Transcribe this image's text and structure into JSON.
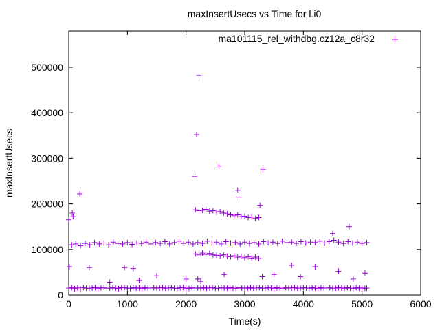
{
  "chart_data": {
    "type": "scatter",
    "title": "maxInsertUsecs vs Time for l.i0",
    "xlabel": "Time(s)",
    "ylabel": "maxInsertUsecs",
    "xlim": [
      0,
      6000
    ],
    "ylim": [
      0,
      580000
    ],
    "xticks": [
      0,
      1000,
      2000,
      3000,
      4000,
      5000,
      6000
    ],
    "yticks": [
      0,
      100000,
      200000,
      300000,
      400000,
      500000
    ],
    "grid": false,
    "legend_position": "top-right",
    "series": [
      {
        "name": "ma101115_rel_withdbg.cz12a_c8r32",
        "color": "#9400d3",
        "points": [
          [
            0,
            15000
          ],
          [
            50,
            16000
          ],
          [
            100,
            14000
          ],
          [
            150,
            15500
          ],
          [
            200,
            13000
          ],
          [
            250,
            16000
          ],
          [
            300,
            15000
          ],
          [
            350,
            14500
          ],
          [
            400,
            15200
          ],
          [
            450,
            16000
          ],
          [
            500,
            14000
          ],
          [
            550,
            15500
          ],
          [
            600,
            16500
          ],
          [
            650,
            14800
          ],
          [
            700,
            15000
          ],
          [
            750,
            16200
          ],
          [
            800,
            15000
          ],
          [
            850,
            14000
          ],
          [
            900,
            15800
          ],
          [
            950,
            16000
          ],
          [
            1000,
            15000
          ],
          [
            1050,
            14500
          ],
          [
            1100,
            16000
          ],
          [
            1150,
            15000
          ],
          [
            1200,
            15500
          ],
          [
            1250,
            14200
          ],
          [
            1300,
            16000
          ],
          [
            1350,
            15000
          ],
          [
            1400,
            15300
          ],
          [
            1450,
            16100
          ],
          [
            1500,
            14900
          ],
          [
            1550,
            15500
          ],
          [
            1600,
            16000
          ],
          [
            1650,
            14700
          ],
          [
            1700,
            15200
          ],
          [
            1750,
            16000
          ],
          [
            1800,
            15000
          ],
          [
            1850,
            14600
          ],
          [
            1900,
            15700
          ],
          [
            1950,
            16000
          ],
          [
            2000,
            15000
          ],
          [
            2050,
            14500
          ],
          [
            2100,
            16200
          ],
          [
            2150,
            15000
          ],
          [
            2200,
            15500
          ],
          [
            2250,
            14800
          ],
          [
            2300,
            16000
          ],
          [
            2350,
            15000
          ],
          [
            2400,
            15400
          ],
          [
            2450,
            16000
          ],
          [
            2500,
            14600
          ],
          [
            2550,
            15000
          ],
          [
            2600,
            16000
          ],
          [
            2650,
            15200
          ],
          [
            2700,
            14800
          ],
          [
            2750,
            15900
          ],
          [
            2800,
            15000
          ],
          [
            2850,
            14500
          ],
          [
            2900,
            16000
          ],
          [
            2950,
            15000
          ],
          [
            3000,
            15500
          ],
          [
            3050,
            14700
          ],
          [
            3100,
            16000
          ],
          [
            3150,
            15000
          ],
          [
            3200,
            15300
          ],
          [
            3250,
            16000
          ],
          [
            3300,
            14800
          ],
          [
            3350,
            15000
          ],
          [
            3400,
            16000
          ],
          [
            3450,
            15200
          ],
          [
            3500,
            14600
          ],
          [
            3550,
            15800
          ],
          [
            3600,
            15000
          ],
          [
            3650,
            14500
          ],
          [
            3700,
            16000
          ],
          [
            3750,
            15000
          ],
          [
            3800,
            15400
          ],
          [
            3850,
            16000
          ],
          [
            3900,
            14800
          ],
          [
            3950,
            15000
          ],
          [
            4000,
            16000
          ],
          [
            4050,
            15100
          ],
          [
            4100,
            14700
          ],
          [
            4150,
            15900
          ],
          [
            4200,
            15000
          ],
          [
            4250,
            14500
          ],
          [
            4300,
            16000
          ],
          [
            4350,
            15000
          ],
          [
            4400,
            15300
          ],
          [
            4450,
            16000
          ],
          [
            4500,
            14800
          ],
          [
            4550,
            15000
          ],
          [
            4600,
            16000
          ],
          [
            4650,
            15200
          ],
          [
            4700,
            14600
          ],
          [
            4750,
            15800
          ],
          [
            4800,
            15000
          ],
          [
            4850,
            14500
          ],
          [
            4900,
            16000
          ],
          [
            4950,
            15000
          ],
          [
            5000,
            15500
          ],
          [
            5050,
            14800
          ],
          [
            5080,
            15000
          ],
          [
            50,
            110000
          ],
          [
            120,
            112000
          ],
          [
            200,
            108000
          ],
          [
            280,
            113000
          ],
          [
            360,
            110000
          ],
          [
            440,
            115000
          ],
          [
            520,
            112000
          ],
          [
            600,
            114000
          ],
          [
            680,
            110000
          ],
          [
            760,
            116000
          ],
          [
            840,
            113000
          ],
          [
            920,
            112000
          ],
          [
            1000,
            115000
          ],
          [
            1080,
            111000
          ],
          [
            1160,
            114000
          ],
          [
            1240,
            113000
          ],
          [
            1320,
            116000
          ],
          [
            1400,
            112000
          ],
          [
            1480,
            115000
          ],
          [
            1560,
            113000
          ],
          [
            1640,
            117000
          ],
          [
            1720,
            112000
          ],
          [
            1800,
            115000
          ],
          [
            1880,
            118000
          ],
          [
            1960,
            113000
          ],
          [
            2040,
            116000
          ],
          [
            2120,
            112000
          ],
          [
            2200,
            115000
          ],
          [
            2280,
            113000
          ],
          [
            2360,
            118000
          ],
          [
            2440,
            114000
          ],
          [
            2520,
            116000
          ],
          [
            2600,
            112000
          ],
          [
            2680,
            117000
          ],
          [
            2760,
            114000
          ],
          [
            2840,
            115000
          ],
          [
            2920,
            112000
          ],
          [
            3000,
            116000
          ],
          [
            3080,
            113000
          ],
          [
            3160,
            115000
          ],
          [
            3240,
            112000
          ],
          [
            3320,
            117000
          ],
          [
            3400,
            114000
          ],
          [
            3480,
            116000
          ],
          [
            3560,
            113000
          ],
          [
            3640,
            118000
          ],
          [
            3720,
            115000
          ],
          [
            3800,
            116000
          ],
          [
            3880,
            113000
          ],
          [
            3960,
            117000
          ],
          [
            4040,
            114000
          ],
          [
            4120,
            116000
          ],
          [
            4200,
            115000
          ],
          [
            4280,
            118000
          ],
          [
            4360,
            114000
          ],
          [
            4440,
            117000
          ],
          [
            4520,
            120000
          ],
          [
            4600,
            116000
          ],
          [
            4680,
            113000
          ],
          [
            4760,
            117000
          ],
          [
            4840,
            114000
          ],
          [
            4920,
            116000
          ],
          [
            5000,
            113000
          ],
          [
            5080,
            115000
          ],
          [
            2160,
            187000
          ],
          [
            2220,
            185000
          ],
          [
            2280,
            186000
          ],
          [
            2340,
            188000
          ],
          [
            2400,
            184000
          ],
          [
            2460,
            185000
          ],
          [
            2520,
            182000
          ],
          [
            2580,
            183000
          ],
          [
            2640,
            180000
          ],
          [
            2700,
            178000
          ],
          [
            2760,
            176000
          ],
          [
            2820,
            174000
          ],
          [
            2880,
            176000
          ],
          [
            2940,
            172000
          ],
          [
            3000,
            173000
          ],
          [
            3060,
            170000
          ],
          [
            3120,
            171000
          ],
          [
            3180,
            168000
          ],
          [
            3240,
            170000
          ],
          [
            2160,
            90000
          ],
          [
            2220,
            88000
          ],
          [
            2280,
            92000
          ],
          [
            2340,
            89000
          ],
          [
            2400,
            91000
          ],
          [
            2460,
            88000
          ],
          [
            2520,
            87000
          ],
          [
            2580,
            86000
          ],
          [
            2640,
            88000
          ],
          [
            2700,
            85000
          ],
          [
            2760,
            84000
          ],
          [
            2820,
            86000
          ],
          [
            2880,
            83000
          ],
          [
            2940,
            85000
          ],
          [
            3000,
            82000
          ],
          [
            3060,
            84000
          ],
          [
            3120,
            81000
          ],
          [
            3180,
            83000
          ],
          [
            3240,
            80000
          ],
          [
            0,
            165000
          ],
          [
            10,
            62000
          ],
          [
            60,
            180000
          ],
          [
            75,
            172000
          ],
          [
            190,
            222000
          ],
          [
            2150,
            260000
          ],
          [
            2180,
            352000
          ],
          [
            2220,
            482000
          ],
          [
            2560,
            283000
          ],
          [
            2880,
            230000
          ],
          [
            2900,
            215000
          ],
          [
            3310,
            275000
          ],
          [
            3260,
            197000
          ],
          [
            350,
            60000
          ],
          [
            950,
            60000
          ],
          [
            1100,
            58000
          ],
          [
            4780,
            150000
          ],
          [
            4500,
            135000
          ],
          [
            3800,
            65000
          ],
          [
            4200,
            62000
          ],
          [
            1500,
            42000
          ],
          [
            2000,
            35000
          ],
          [
            2200,
            35000
          ],
          [
            2250,
            30000
          ],
          [
            3500,
            45000
          ],
          [
            3950,
            40000
          ],
          [
            4600,
            52000
          ],
          [
            4850,
            35000
          ],
          [
            5050,
            48000
          ],
          [
            1200,
            32000
          ],
          [
            700,
            28000
          ],
          [
            3300,
            40000
          ],
          [
            2650,
            45000
          ]
        ]
      }
    ]
  }
}
